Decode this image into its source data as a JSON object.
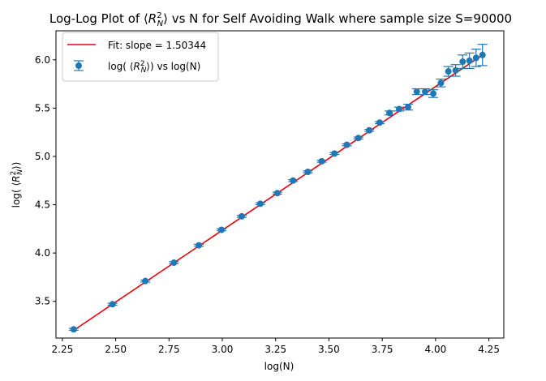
{
  "chart_data": {
    "type": "scatter",
    "title": "Log-Log Plot of ⟨R_N^2⟩ vs N for Self Avoiding Walk where sample size S=90000",
    "title_parts": {
      "prefix": "Log-Log Plot of ⟨",
      "symbol": "R",
      "sub": "N",
      "sup": "2",
      "suffix": "⟩ vs N for Self Avoiding Walk where sample size S=90000"
    },
    "xlabel": "log(N)",
    "ylabel": "log( ⟨R_N^2⟩)",
    "xlim": [
      2.22,
      4.32
    ],
    "ylim": [
      3.12,
      6.3
    ],
    "xticks": [
      2.25,
      2.5,
      2.75,
      3.0,
      3.25,
      3.5,
      3.75,
      4.0,
      4.25
    ],
    "xtick_labels": [
      "2.25",
      "2.50",
      "2.75",
      "3.00",
      "3.25",
      "3.50",
      "3.75",
      "4.00",
      "4.25"
    ],
    "yticks": [
      3.5,
      4.0,
      4.5,
      5.0,
      5.5,
      6.0
    ],
    "ytick_labels": [
      "3.5",
      "4.0",
      "4.5",
      "5.0",
      "5.5",
      "6.0"
    ],
    "grid": false,
    "legend_position": "top-left",
    "series": [
      {
        "name": "Fit: slope = 1.50344",
        "kind": "line",
        "color": "#e8000b",
        "x": [
          2.303,
          4.22
        ],
        "y": [
          3.2,
          6.05
        ]
      },
      {
        "name": "log( ⟨R_N^2⟩) vs log(N)",
        "name_parts": {
          "prefix": "log( ⟨",
          "symbol": "R",
          "sub": "N",
          "sup": "2",
          "suffix": "⟩) vs log(N)"
        },
        "kind": "errorbar",
        "color": "#1f77b4",
        "x": [
          2.303,
          2.485,
          2.639,
          2.773,
          2.89,
          2.996,
          3.091,
          3.178,
          3.258,
          3.332,
          3.401,
          3.466,
          3.526,
          3.584,
          3.638,
          3.689,
          3.738,
          3.784,
          3.829,
          3.871,
          3.912,
          3.951,
          3.989,
          4.025,
          4.06,
          4.094,
          4.127,
          4.159,
          4.19,
          4.22
        ],
        "y": [
          3.21,
          3.47,
          3.71,
          3.9,
          4.08,
          4.24,
          4.38,
          4.51,
          4.62,
          4.75,
          4.84,
          4.95,
          5.03,
          5.12,
          5.19,
          5.27,
          5.35,
          5.45,
          5.49,
          5.51,
          5.67,
          5.67,
          5.65,
          5.76,
          5.88,
          5.89,
          5.98,
          5.99,
          6.02,
          6.05
        ],
        "yerr": [
          0.01,
          0.01,
          0.01,
          0.01,
          0.01,
          0.01,
          0.01,
          0.01,
          0.01,
          0.01,
          0.01,
          0.01,
          0.01,
          0.01,
          0.01,
          0.01,
          0.01,
          0.02,
          0.02,
          0.03,
          0.03,
          0.03,
          0.04,
          0.04,
          0.05,
          0.06,
          0.07,
          0.08,
          0.09,
          0.11
        ]
      }
    ]
  }
}
